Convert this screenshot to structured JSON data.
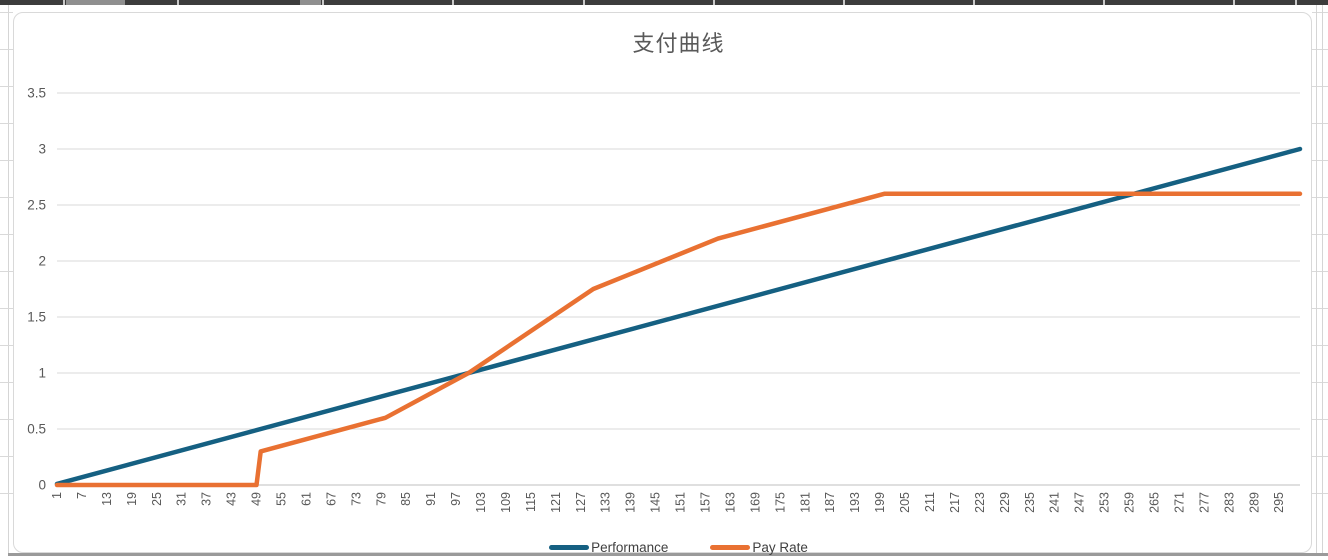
{
  "ui": {
    "chart_bg": "#FFFFFF",
    "title_color": "#595959",
    "axis_label_color": "#595959",
    "gridline_color": "#D9D9D9",
    "axis_line_color": "#BFBFBF",
    "header_strip_color": "#3C3C3C",
    "legend_text_color": "#404040"
  },
  "chart_data": {
    "type": "line",
    "title": "支付曲线",
    "xlabel": "",
    "ylabel": "",
    "xlim": [
      1,
      300
    ],
    "ylim": [
      0,
      3.5
    ],
    "grid": "horizontal",
    "legend_position": "bottom",
    "y_ticks": [
      0,
      0.5,
      1,
      1.5,
      2,
      2.5,
      3,
      3.5
    ],
    "x_tick_labels": [
      1,
      7,
      13,
      19,
      25,
      31,
      37,
      43,
      49,
      55,
      61,
      67,
      73,
      79,
      85,
      91,
      97,
      103,
      109,
      115,
      121,
      127,
      133,
      139,
      145,
      151,
      157,
      163,
      169,
      175,
      181,
      187,
      193,
      199,
      205,
      211,
      217,
      223,
      229,
      235,
      241,
      247,
      253,
      259,
      265,
      271,
      277,
      283,
      289,
      295
    ],
    "series": [
      {
        "name": "Performance",
        "color": "#156082",
        "points": [
          [
            1,
            0.01
          ],
          [
            300,
            3.0
          ]
        ]
      },
      {
        "name": "Pay Rate",
        "color": "#E97132",
        "points": [
          [
            1,
            0
          ],
          [
            49,
            0
          ],
          [
            50,
            0.3
          ],
          [
            80,
            0.6
          ],
          [
            100,
            1.0
          ],
          [
            130,
            1.75
          ],
          [
            160,
            2.2
          ],
          [
            200,
            2.6
          ],
          [
            300,
            2.6
          ]
        ]
      }
    ]
  }
}
